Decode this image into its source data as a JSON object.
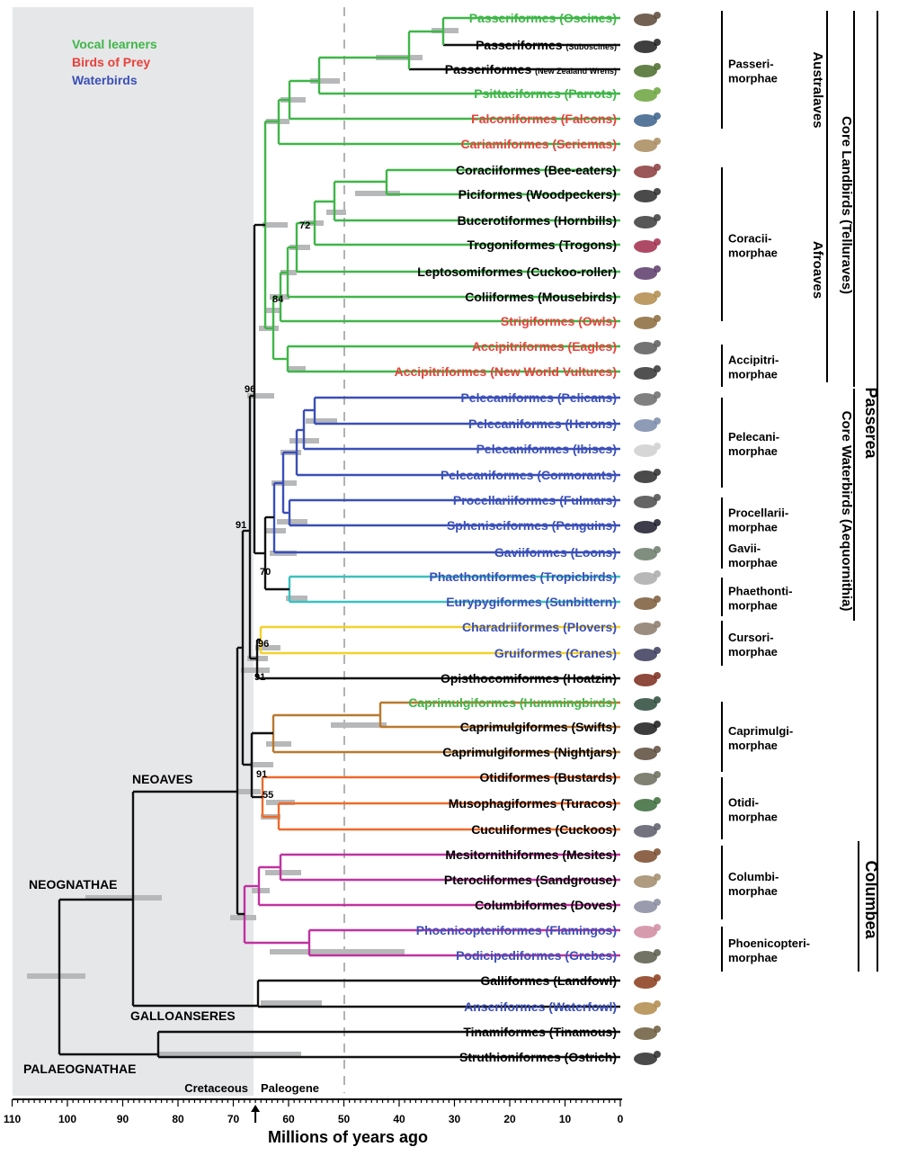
{
  "legend": {
    "vocal": "Vocal learners",
    "prey": "Birds of Prey",
    "water": "Waterbirds",
    "colors": {
      "vocal": "#3fb648",
      "prey": "#e8413a",
      "water": "#3a4fb8",
      "black": "#000000"
    }
  },
  "taxa": [
    {
      "order": "Passeriformes",
      "common": "(Oscines)",
      "color": "vocal"
    },
    {
      "order": "Passeriformes",
      "common": "(Suboscines)",
      "color": "black",
      "small": true
    },
    {
      "order": "Passeriformes",
      "common": "(New Zealand Wrens)",
      "color": "black",
      "small": true
    },
    {
      "order": "Psittaciformes",
      "common": "(Parrots)",
      "color": "vocal"
    },
    {
      "order": "Falconiformes",
      "common": "(Falcons)",
      "color": "prey"
    },
    {
      "order": "Cariamiformes",
      "common": "(Seriemas)",
      "color": "prey"
    },
    {
      "order": "Coraciiformes",
      "common": "(Bee-eaters)",
      "color": "black"
    },
    {
      "order": "Piciformes",
      "common": "(Woodpeckers)",
      "color": "black"
    },
    {
      "order": "Bucerotiformes",
      "common": "(Hornbills)",
      "color": "black"
    },
    {
      "order": "Trogoniformes",
      "common": "(Trogons)",
      "color": "black"
    },
    {
      "order": "Leptosomiformes",
      "common": "(Cuckoo-roller)",
      "color": "black"
    },
    {
      "order": "Coliiformes",
      "common": "(Mousebirds)",
      "color": "black"
    },
    {
      "order": "Strigiformes",
      "common": "(Owls)",
      "color": "prey"
    },
    {
      "order": "Accipitriformes",
      "common": "(Eagles)",
      "color": "prey"
    },
    {
      "order": "Accipitriformes",
      "common": "(New World Vultures)",
      "color": "prey"
    },
    {
      "order": "Pelecaniformes",
      "common": "(Pelicans)",
      "color": "water"
    },
    {
      "order": "Pelecaniformes",
      "common": "(Herons)",
      "color": "water"
    },
    {
      "order": "Pelecaniformes",
      "common": "(Ibises)",
      "color": "water"
    },
    {
      "order": "Pelecaniformes",
      "common": "(Cormorants)",
      "color": "water"
    },
    {
      "order": "Procellariiformes",
      "common": "(Fulmars)",
      "color": "water"
    },
    {
      "order": "Sphenisciformes",
      "common": "(Penguins)",
      "color": "water"
    },
    {
      "order": "Gaviiformes",
      "common": "(Loons)",
      "color": "water"
    },
    {
      "order": "Phaethontiformes",
      "common": "(Tropicbirds)",
      "color": "water"
    },
    {
      "order": "Eurypygiformes",
      "common": "(Sunbittern)",
      "color": "water"
    },
    {
      "order": "Charadriiformes",
      "common": "(Plovers)",
      "color": "water"
    },
    {
      "order": "Gruiformes",
      "common": "(Cranes)",
      "color": "water"
    },
    {
      "order": "Opisthocomiformes",
      "common": "(Hoatzin)",
      "color": "black"
    },
    {
      "order": "Caprimulgiformes",
      "common": "(Hummingbirds)",
      "color": "vocal"
    },
    {
      "order": "Caprimulgiformes",
      "common": "(Swifts)",
      "color": "black"
    },
    {
      "order": "Caprimulgiformes",
      "common": "(Nightjars)",
      "color": "black"
    },
    {
      "order": "Otidiformes",
      "common": "(Bustards)",
      "color": "black"
    },
    {
      "order": "Musophagiformes",
      "common": "(Turacos)",
      "color": "black"
    },
    {
      "order": "Cuculiformes",
      "common": "(Cuckoos)",
      "color": "black"
    },
    {
      "order": "Mesitornithiformes",
      "common": "(Mesites)",
      "color": "black"
    },
    {
      "order": "Pterocliformes",
      "common": "(Sandgrouse)",
      "color": "black"
    },
    {
      "order": "Columbiformes",
      "common": "(Doves)",
      "color": "black"
    },
    {
      "order": "Phoenicopteriformes",
      "common": "(Flamingos)",
      "color": "water"
    },
    {
      "order": "Podicipediformes",
      "common": "(Grebes)",
      "color": "water"
    },
    {
      "order": "Galliformes",
      "common": "(Landfowl)",
      "color": "black"
    },
    {
      "order": "Anseriformes",
      "common": "(Waterfowl)",
      "color": "water"
    },
    {
      "order": "Tinamiformes",
      "common": "(Tinamous)",
      "color": "black"
    },
    {
      "order": "Struthioniformes",
      "common": "(Ostrich)",
      "color": "black"
    }
  ],
  "clades": [
    {
      "l1": "Passeri-",
      "l2": "morphae"
    },
    {
      "l1": "Coracii-",
      "l2": "morphae"
    },
    {
      "l1": "Accipitri-",
      "l2": "morphae"
    },
    {
      "l1": "Pelecani-",
      "l2": "morphae"
    },
    {
      "l1": "Procellarii-",
      "l2": "morphae"
    },
    {
      "l1": "Gavii-",
      "l2": "morphae"
    },
    {
      "l1": "Phaethonti-",
      "l2": "morphae"
    },
    {
      "l1": "Cursori-",
      "l2": "morphae"
    },
    {
      "l1": "Caprimulgi-",
      "l2": "morphae"
    },
    {
      "l1": "Otidi-",
      "l2": "morphae"
    },
    {
      "l1": "Columbi-",
      "l2": "morphae"
    },
    {
      "l1": "Phoenicopteri-",
      "l2": "morphae"
    }
  ],
  "supergroups": {
    "australaves": "Australaves",
    "afroaves": "Afroaves",
    "core_landbirds": "Core Landbirds (Telluraves)",
    "core_waterbirds": "Core Waterbirds (Aequornithia)",
    "passerea": "Passerea",
    "columbea": "Columbea"
  },
  "groups": {
    "neoaves": "NEOAVES",
    "neognathae": "NEOGNATHAE",
    "galloanseres": "GALLOANSERES",
    "palaeognathae": "PALAEOGNATHAE"
  },
  "node_support": [
    "72",
    "84",
    "96",
    "91",
    "70",
    "96",
    "91",
    "91",
    "55"
  ],
  "axis": {
    "title": "Millions of years ago",
    "ticks": [
      "110",
      "100",
      "90",
      "80",
      "70",
      "60",
      "50",
      "40",
      "30",
      "20",
      "10",
      "0"
    ],
    "cretaceous": "Cretaceous",
    "paleogene": "Paleogene",
    "kpg_boundary_mya": 66,
    "dashed_line_mya": 50
  }
}
